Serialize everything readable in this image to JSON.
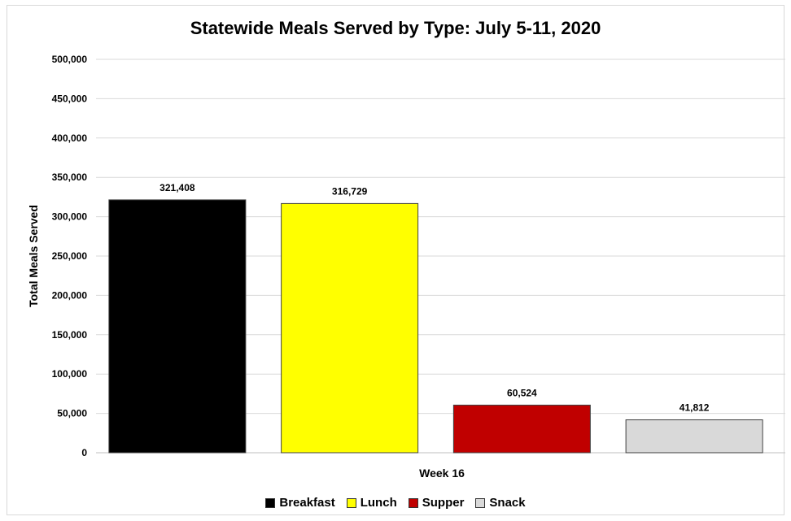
{
  "chart_data": {
    "type": "bar",
    "title": "Statewide Meals Served by Type: July 5-11, 2020",
    "xlabel": "Week 16",
    "ylabel": "Total Meals Served",
    "ylim": [
      0,
      500000
    ],
    "yticks": [
      "0",
      "50,000",
      "100,000",
      "150,000",
      "200,000",
      "250,000",
      "300,000",
      "350,000",
      "400,000",
      "450,000",
      "500,000"
    ],
    "grid": true,
    "legend_position": "bottom",
    "categories": [
      "Week 16"
    ],
    "series": [
      {
        "name": "Breakfast",
        "values": [
          321408
        ],
        "label": "321,408",
        "color": "#000000"
      },
      {
        "name": "Lunch",
        "values": [
          316729
        ],
        "label": "316,729",
        "color": "#ffff00"
      },
      {
        "name": "Supper",
        "values": [
          60524
        ],
        "label": "60,524",
        "color": "#c00000"
      },
      {
        "name": "Snack",
        "values": [
          41812
        ],
        "label": "41,812",
        "color": "#d9d9d9"
      }
    ]
  }
}
